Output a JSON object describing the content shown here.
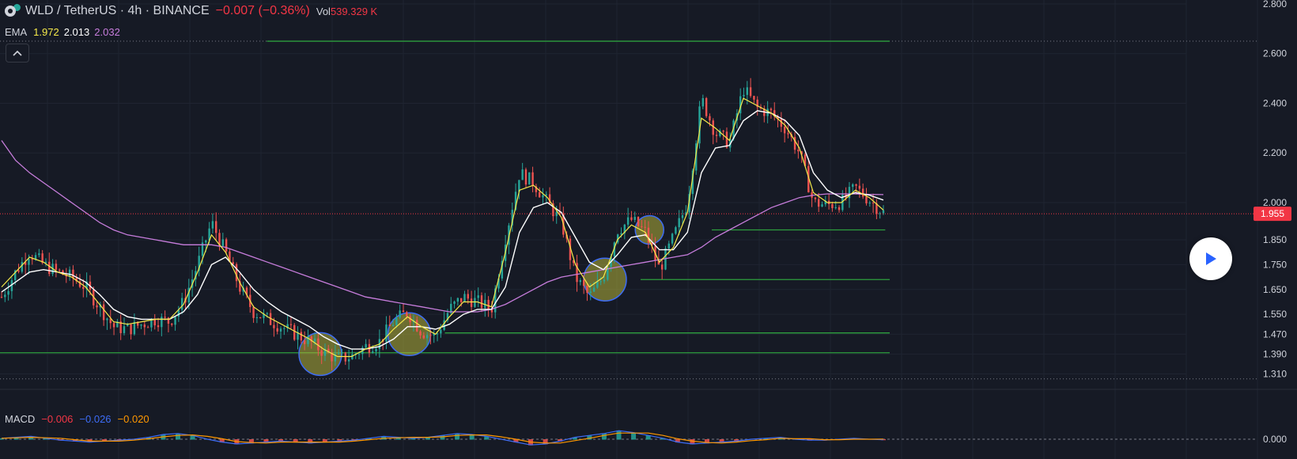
{
  "header": {
    "symbol": "WLD / TetherUS · 4h · BINANCE",
    "change": "−0.007 (−0.36%)",
    "vol_label": "Vol",
    "vol_value": "539.329 K"
  },
  "ema_legend": {
    "label": "EMA",
    "fast": "1.972",
    "mid": "2.013",
    "slow": "2.032"
  },
  "macd_legend": {
    "label": "MACD",
    "macd": "−0.006",
    "signal": "−0.026",
    "hist": "−0.020"
  },
  "price_label": "1.955",
  "colors": {
    "bg": "#161a25",
    "up": "#26a69a",
    "down": "#ef5350",
    "ema_fast": "#f5e94a",
    "ema_mid": "#ffffff",
    "ema_slow": "#c77ddc",
    "level": "#2e9f3e",
    "highlight": "#b5b33a",
    "macd": "#3d6cf5",
    "signal": "#ff9800"
  },
  "icons": {
    "collapse": "chevron-up-icon",
    "play": "play-icon"
  },
  "chart_data": {
    "type": "candlestick",
    "title": "WLD / TetherUS · 4h · BINANCE",
    "y_ticks": [
      "2.800",
      "2.600",
      "2.400",
      "2.200",
      "2.000",
      "1.850",
      "1.750",
      "1.650",
      "1.550",
      "1.470",
      "1.390",
      "1.310"
    ],
    "y_tick_values": [
      2.8,
      2.6,
      2.4,
      2.2,
      2.0,
      1.85,
      1.75,
      1.65,
      1.55,
      1.47,
      1.39,
      1.31
    ],
    "last_price": 1.955,
    "macd_tick": "0.000",
    "close_series": [
      1.62,
      1.72,
      1.8,
      1.75,
      1.72,
      1.7,
      1.66,
      1.58,
      1.5,
      1.49,
      1.51,
      1.53,
      1.52,
      1.6,
      1.75,
      1.92,
      1.8,
      1.66,
      1.56,
      1.53,
      1.5,
      1.47,
      1.44,
      1.4,
      1.37,
      1.38,
      1.42,
      1.44,
      1.52,
      1.56,
      1.48,
      1.46,
      1.57,
      1.62,
      1.6,
      1.57,
      1.86,
      2.12,
      2.08,
      2.0,
      1.92,
      1.7,
      1.62,
      1.7,
      1.89,
      1.93,
      1.88,
      1.73,
      1.86,
      2.0,
      2.42,
      2.28,
      2.24,
      2.46,
      2.38,
      2.36,
      2.3,
      2.2,
      2.0,
      1.99,
      2.0,
      2.06,
      2.01,
      1.96
    ],
    "ema_fast": [
      1.66,
      1.72,
      1.78,
      1.76,
      1.72,
      1.7,
      1.66,
      1.59,
      1.52,
      1.51,
      1.52,
      1.53,
      1.53,
      1.59,
      1.72,
      1.87,
      1.8,
      1.68,
      1.58,
      1.54,
      1.51,
      1.48,
      1.45,
      1.41,
      1.38,
      1.38,
      1.41,
      1.43,
      1.49,
      1.54,
      1.5,
      1.47,
      1.54,
      1.6,
      1.6,
      1.58,
      1.8,
      2.05,
      2.07,
      2.02,
      1.94,
      1.75,
      1.66,
      1.7,
      1.85,
      1.91,
      1.88,
      1.76,
      1.82,
      1.96,
      2.34,
      2.3,
      2.25,
      2.42,
      2.39,
      2.36,
      2.31,
      2.22,
      2.04,
      2.0,
      2.0,
      2.05,
      2.02,
      1.97
    ],
    "ema_mid": [
      1.64,
      1.68,
      1.72,
      1.73,
      1.72,
      1.71,
      1.68,
      1.63,
      1.57,
      1.54,
      1.53,
      1.53,
      1.53,
      1.56,
      1.63,
      1.75,
      1.78,
      1.72,
      1.65,
      1.6,
      1.56,
      1.53,
      1.5,
      1.46,
      1.43,
      1.41,
      1.41,
      1.42,
      1.45,
      1.5,
      1.5,
      1.49,
      1.51,
      1.55,
      1.57,
      1.57,
      1.66,
      1.88,
      1.98,
      2.0,
      1.96,
      1.86,
      1.76,
      1.73,
      1.79,
      1.86,
      1.87,
      1.81,
      1.81,
      1.88,
      2.12,
      2.22,
      2.23,
      2.33,
      2.37,
      2.36,
      2.33,
      2.27,
      2.12,
      2.05,
      2.02,
      2.04,
      2.03,
      2.01
    ],
    "ema_slow": [
      2.25,
      2.17,
      2.12,
      2.08,
      2.04,
      2.0,
      1.96,
      1.92,
      1.89,
      1.87,
      1.86,
      1.85,
      1.84,
      1.83,
      1.83,
      1.83,
      1.82,
      1.8,
      1.78,
      1.76,
      1.74,
      1.72,
      1.7,
      1.68,
      1.66,
      1.64,
      1.62,
      1.61,
      1.6,
      1.59,
      1.58,
      1.57,
      1.56,
      1.56,
      1.56,
      1.57,
      1.59,
      1.62,
      1.65,
      1.68,
      1.7,
      1.71,
      1.72,
      1.73,
      1.74,
      1.75,
      1.76,
      1.77,
      1.78,
      1.79,
      1.82,
      1.86,
      1.89,
      1.92,
      1.95,
      1.98,
      2.0,
      2.02,
      2.03,
      2.035,
      2.035,
      2.035,
      2.033,
      2.032
    ],
    "levels": [
      {
        "y": 2.65,
        "x_from": 0.3,
        "x_to": 1.0
      },
      {
        "y": 1.89,
        "x_from": 0.8,
        "x_to": 0.995
      },
      {
        "y": 1.69,
        "x_from": 0.72,
        "x_to": 1.0
      },
      {
        "y": 1.475,
        "x_from": 0.5,
        "x_to": 1.0
      },
      {
        "y": 1.395,
        "x_from": 0.0,
        "x_to": 1.0
      }
    ],
    "highlights": [
      {
        "x": 0.36,
        "y": 1.39
      },
      {
        "x": 0.46,
        "y": 1.47
      },
      {
        "x": 0.68,
        "y": 1.69
      },
      {
        "x": 0.73,
        "y": 1.89
      }
    ],
    "macd_series": [
      0.01,
      0.02,
      0.03,
      0.01,
      -0.01,
      -0.02,
      -0.03,
      -0.02,
      -0.01,
      0.0,
      0.02,
      0.05,
      0.06,
      0.04,
      0.0,
      -0.03,
      -0.05,
      -0.04,
      -0.03,
      -0.02,
      -0.03,
      -0.04,
      -0.03,
      -0.02,
      -0.01,
      0.01,
      0.03,
      0.02,
      0.01,
      0.02,
      0.04,
      0.06,
      0.05,
      0.03,
      0.0,
      -0.03,
      -0.06,
      -0.05,
      -0.02,
      0.02,
      0.04,
      0.06,
      0.09,
      0.07,
      0.04,
      0.01,
      -0.03,
      -0.05,
      -0.04,
      -0.03,
      -0.02,
      0.0,
      0.01,
      0.02,
      0.0,
      -0.01,
      -0.01,
      0.0,
      0.01,
      0.0,
      -0.006
    ]
  }
}
